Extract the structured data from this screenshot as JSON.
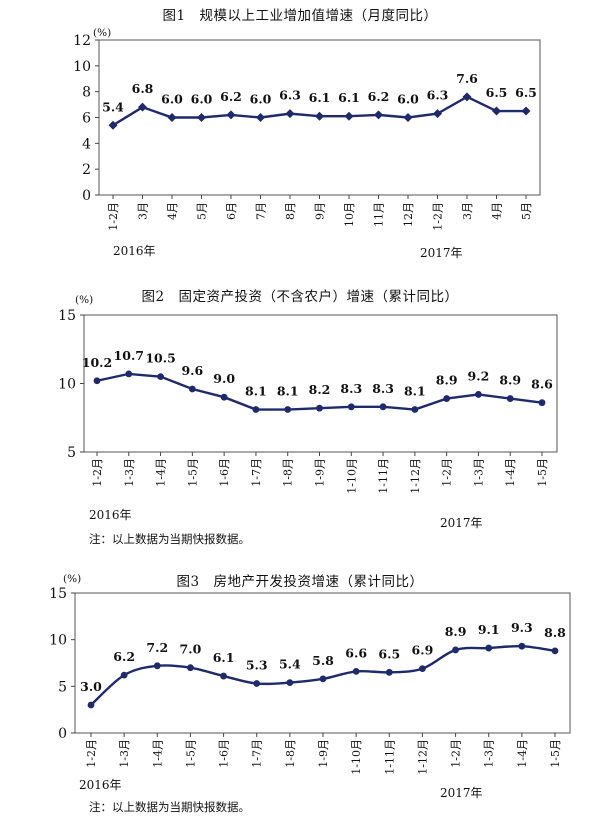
{
  "page": {
    "charts": [
      {
        "title": "图1　规模以上工业增加值增速（月度同比）",
        "unit": "(%)",
        "year_labels": [
          "2016年",
          "2017年"
        ],
        "note": "",
        "line_color": "#1f2a6b"
      },
      {
        "title": "图2　固定资产投资（不含农户）增速（累计同比）",
        "unit": "(%)",
        "year_labels": [
          "2016年",
          "2017年"
        ],
        "note": "注：以上数据为当期快报数据。",
        "line_color": "#1f2a6b"
      },
      {
        "title": "图3　房地产开发投资增速（累计同比）",
        "unit": "(%)",
        "year_labels": [
          "2016年",
          "2017年"
        ],
        "note": "注：以上数据为当期快报数据。",
        "line_color": "#1f2a6b"
      }
    ]
  },
  "chart_data": [
    {
      "type": "line",
      "title": "图1　规模以上工业增加值增速（月度同比）",
      "ylabel": "(%)",
      "ylim": [
        0,
        12
      ],
      "yticks": [
        0,
        2,
        4,
        6,
        8,
        10,
        12
      ],
      "categories": [
        "1-2月",
        "3月",
        "4月",
        "5月",
        "6月",
        "7月",
        "8月",
        "9月",
        "10月",
        "11月",
        "12月",
        "1-2月",
        "3月",
        "4月",
        "5月"
      ],
      "values": [
        5.4,
        6.8,
        6.0,
        6.0,
        6.2,
        6.0,
        6.3,
        6.1,
        6.1,
        6.2,
        6.0,
        6.3,
        7.6,
        6.5,
        6.5
      ],
      "value_labels": [
        "5.4",
        "6.8",
        "6.0",
        "6.0",
        "6.2",
        "6.0",
        "6.3",
        "6.1",
        "6.1",
        "6.2",
        "6.0",
        "6.3",
        "7.6",
        "6.5",
        "6.5"
      ],
      "grid": false,
      "markers": "diamond"
    },
    {
      "type": "line",
      "title": "图2　固定资产投资（不含农户）增速（累计同比）",
      "ylabel": "(%)",
      "ylim": [
        5,
        15
      ],
      "yticks": [
        5,
        10,
        15
      ],
      "categories": [
        "1-2月",
        "1-3月",
        "1-4月",
        "1-5月",
        "1-6月",
        "1-7月",
        "1-8月",
        "1-9月",
        "1-10月",
        "1-11月",
        "1-12月",
        "1-2月",
        "1-3月",
        "1-4月",
        "1-5月"
      ],
      "values": [
        10.2,
        10.7,
        10.5,
        9.6,
        9.0,
        8.1,
        8.1,
        8.2,
        8.3,
        8.3,
        8.1,
        8.9,
        9.2,
        8.9,
        8.6
      ],
      "value_labels": [
        "10.2",
        "10.7",
        "10.5",
        "9.6",
        "9.0",
        "8.1",
        "8.1",
        "8.2",
        "8.3",
        "8.3",
        "8.1",
        "8.9",
        "9.2",
        "8.9",
        "8.6"
      ],
      "grid": false,
      "markers": "circle"
    },
    {
      "type": "line",
      "title": "图3　房地产开发投资增速（累计同比）",
      "ylabel": "(%)",
      "ylim": [
        0,
        15
      ],
      "yticks": [
        0,
        5,
        10,
        15
      ],
      "categories": [
        "1-2月",
        "1-3月",
        "1-4月",
        "1-5月",
        "1-6月",
        "1-7月",
        "1-8月",
        "1-9月",
        "1-10月",
        "1-11月",
        "1-12月",
        "1-2月",
        "1-3月",
        "1-4月",
        "1-5月"
      ],
      "values": [
        3.0,
        6.2,
        7.2,
        7.0,
        6.1,
        5.3,
        5.4,
        5.8,
        6.6,
        6.5,
        6.9,
        8.9,
        9.1,
        9.3,
        8.8
      ],
      "value_labels": [
        "3.0",
        "6.2",
        "7.2",
        "7.0",
        "6.1",
        "5.3",
        "5.4",
        "5.8",
        "6.6",
        "6.5",
        "6.9",
        "8.9",
        "9.1",
        "9.3",
        "8.8"
      ],
      "grid": false,
      "markers": "circle",
      "smooth": true
    }
  ]
}
